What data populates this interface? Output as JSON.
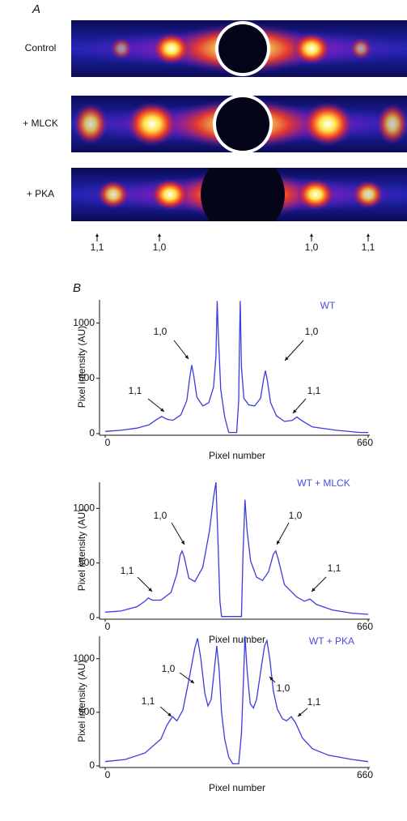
{
  "figure": {
    "panel_a": {
      "label": "A",
      "rows": [
        "Control",
        "+ MLCK",
        "+ PKA"
      ],
      "markers": [
        "1,1",
        "1,0",
        "1,0",
        "1,1"
      ]
    },
    "panel_b_label": "B"
  },
  "chart_data": [
    {
      "type": "line",
      "title": "WT",
      "xlabel": "Pixel number",
      "ylabel": "Pixel intensity (AU)",
      "color": "#3b3be0",
      "xlim": [
        0,
        660
      ],
      "xticks": [
        0,
        660
      ],
      "ylim": [
        0,
        1210
      ],
      "yticks": [
        0,
        500,
        1000
      ],
      "annotations": [
        "1,1",
        "1,0",
        "1,0",
        "1,1"
      ],
      "x": [
        0,
        40,
        80,
        110,
        130,
        142,
        155,
        170,
        190,
        205,
        212,
        217,
        222,
        230,
        245,
        260,
        272,
        278,
        281,
        284,
        290,
        300,
        310,
        330,
        335,
        337,
        339,
        342,
        348,
        360,
        375,
        390,
        397,
        402,
        407,
        415,
        430,
        450,
        470,
        481,
        492,
        520,
        580,
        640,
        660
      ],
      "values": [
        20,
        30,
        50,
        80,
        130,
        155,
        130,
        120,
        170,
        300,
        500,
        620,
        530,
        330,
        250,
        280,
        420,
        700,
        1200,
        900,
        400,
        150,
        10,
        10,
        300,
        800,
        1200,
        600,
        320,
        260,
        250,
        320,
        480,
        570,
        480,
        280,
        160,
        110,
        120,
        150,
        120,
        60,
        30,
        10,
        10
      ]
    },
    {
      "type": "line",
      "title": "WT + MLCK",
      "xlabel": "Pixel number",
      "ylabel": "Pixel intensity (AU)",
      "color": "#3b3be0",
      "xlim": [
        0,
        660
      ],
      "xticks": [
        0,
        660
      ],
      "ylim": [
        0,
        1240
      ],
      "yticks": [
        0,
        500,
        1000
      ],
      "annotations": [
        "1,1",
        "1,0",
        "1,0",
        "1,1"
      ],
      "x": [
        0,
        40,
        80,
        100,
        108,
        118,
        140,
        165,
        180,
        188,
        193,
        198,
        210,
        225,
        245,
        262,
        272,
        278,
        283,
        288,
        292,
        342,
        346,
        351,
        356,
        365,
        380,
        395,
        410,
        422,
        428,
        434,
        450,
        480,
        500,
        514,
        530,
        570,
        620,
        660
      ],
      "values": [
        50,
        60,
        100,
        150,
        180,
        160,
        160,
        230,
        400,
        570,
        610,
        560,
        360,
        330,
        460,
        800,
        1100,
        1240,
        700,
        150,
        10,
        10,
        600,
        1080,
        800,
        520,
        370,
        340,
        420,
        580,
        610,
        540,
        300,
        190,
        150,
        170,
        120,
        70,
        40,
        30
      ]
    },
    {
      "type": "line",
      "title": "WT + PKA",
      "xlabel": "Pixel number",
      "ylabel": "Pixel intensity (AU)",
      "color": "#3b3be0",
      "xlim": [
        0,
        660
      ],
      "xticks": [
        0,
        660
      ],
      "ylim": [
        0,
        1210
      ],
      "yticks": [
        0,
        500,
        1000
      ],
      "annotations": [
        "1,0",
        "1,1",
        "1,0",
        "1,1"
      ],
      "x": [
        0,
        50,
        100,
        140,
        155,
        169,
        180,
        195,
        210,
        225,
        232,
        240,
        250,
        258,
        266,
        274,
        280,
        286,
        292,
        300,
        310,
        320,
        335,
        342,
        347,
        351,
        356,
        364,
        372,
        380,
        393,
        400,
        406,
        413,
        422,
        432,
        445,
        455,
        467,
        478,
        495,
        520,
        560,
        620,
        660
      ],
      "values": [
        40,
        60,
        120,
        250,
        380,
        460,
        420,
        520,
        800,
        1100,
        1190,
        1000,
        680,
        560,
        620,
        900,
        1120,
        900,
        500,
        250,
        80,
        20,
        20,
        300,
        800,
        1210,
        900,
        580,
        540,
        620,
        950,
        1120,
        1170,
        1000,
        700,
        530,
        440,
        420,
        460,
        400,
        260,
        160,
        100,
        60,
        40
      ]
    }
  ]
}
